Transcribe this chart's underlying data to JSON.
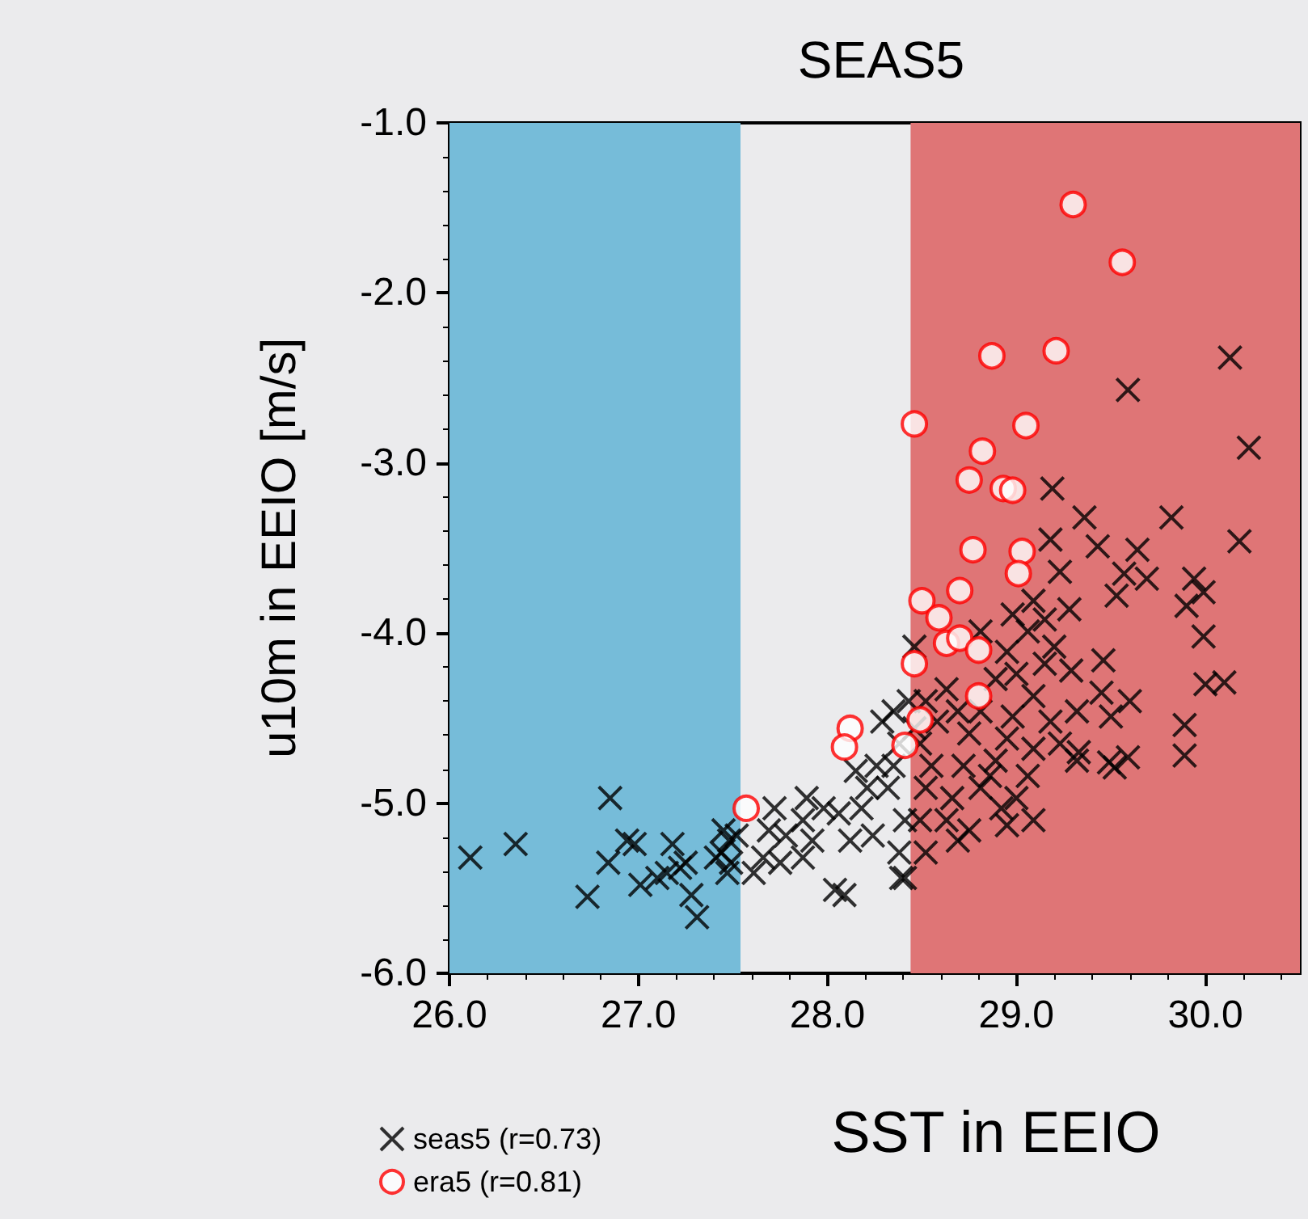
{
  "chart_data": {
    "type": "scatter",
    "title": "SEAS5",
    "xlabel": "SST in EEIO",
    "ylabel": "u10m in EEIO [m/s]",
    "xlim": [
      26,
      30.5
    ],
    "ylim": [
      -6,
      -1
    ],
    "xticks": [
      {
        "value": 26,
        "label": "26.0"
      },
      {
        "value": 27,
        "label": "27.0"
      },
      {
        "value": 28,
        "label": "28.0"
      },
      {
        "value": 29,
        "label": "29.0"
      },
      {
        "value": 30,
        "label": "30.0"
      }
    ],
    "yticks": [
      {
        "value": -6,
        "label": "-6.0"
      },
      {
        "value": -5,
        "label": "-5.0"
      },
      {
        "value": -4,
        "label": "-4.0"
      },
      {
        "value": -3,
        "label": "-3.0"
      },
      {
        "value": -2,
        "label": "-2.0"
      },
      {
        "value": -1,
        "label": "-1.0"
      }
    ],
    "grid": false,
    "legend": "bottom left",
    "bands": [
      {
        "axis": "x",
        "from": 26,
        "to": 27.54,
        "color": "#76bcd9"
      },
      {
        "axis": "x",
        "from": 28.44,
        "to": 30.5,
        "color": "#df7576"
      }
    ],
    "series": [
      {
        "name": "seas5 (r=0.73)",
        "color": "#000000",
        "marker": "cross",
        "x": [
          26.11,
          26.35,
          26.85,
          26.73,
          26.84,
          26.94,
          26.98,
          27.01,
          27.1,
          27.18,
          27.22,
          27.15,
          27.28,
          27.31,
          27.25,
          27.41,
          27.45,
          27.48,
          27.49,
          27.47,
          27.44,
          27.52,
          27.61,
          27.69,
          27.66,
          27.78,
          27.75,
          27.87,
          27.89,
          27.87,
          27.98,
          28.06,
          28.04,
          28.09,
          28.12,
          28.18,
          28.21,
          28.26,
          28.29,
          28.35,
          28.38,
          28.32,
          28.41,
          28.41,
          28.24,
          28.38,
          27.92,
          27.72,
          28.15,
          28.35,
          28.43,
          28.46,
          29.19,
          29.36,
          29.82,
          30.18,
          29.18,
          29.43,
          29.64,
          29.57,
          29.69,
          29.94,
          29.99,
          29.9,
          29.53,
          29.23,
          29.09,
          29.28,
          29.15,
          29.99,
          28.81,
          29.2,
          28.95,
          29.46,
          29.29,
          29.0,
          30.0,
          30.1,
          29.45,
          29.6,
          29.5,
          29.89,
          29.89,
          29.09,
          28.89,
          28.63,
          28.52,
          28.58,
          28.81,
          28.98,
          29.18,
          29.23,
          29.33,
          29.32,
          29.49,
          29.59,
          29.52,
          29.09,
          28.95,
          28.75,
          28.49,
          28.55,
          28.72,
          28.89,
          29.06,
          29.0,
          29.09,
          28.92,
          28.81,
          28.66,
          28.52,
          28.49,
          28.63,
          28.75,
          28.95,
          28.52,
          28.69,
          28.39,
          28.86,
          28.69,
          29.06,
          29.32,
          29.15,
          28.98,
          28.46,
          30.13,
          29.59,
          30.23
        ],
        "values": [
          -5.32,
          -5.24,
          -4.97,
          -5.55,
          -5.35,
          -5.22,
          -5.24,
          -5.48,
          -5.44,
          -5.24,
          -5.38,
          -5.41,
          -5.54,
          -5.67,
          -5.35,
          -5.32,
          -5.16,
          -5.22,
          -5.35,
          -5.41,
          -5.29,
          -5.19,
          -5.41,
          -5.16,
          -5.32,
          -5.19,
          -5.35,
          -5.1,
          -4.97,
          -5.32,
          -5.03,
          -5.06,
          -5.51,
          -5.54,
          -5.22,
          -5.03,
          -4.91,
          -4.78,
          -4.52,
          -4.46,
          -4.65,
          -4.91,
          -5.1,
          -5.44,
          -5.19,
          -5.29,
          -5.22,
          -5.03,
          -4.81,
          -4.78,
          -4.4,
          -4.08,
          -3.15,
          -3.32,
          -3.32,
          -3.46,
          -3.45,
          -3.49,
          -3.51,
          -3.65,
          -3.68,
          -3.68,
          -3.76,
          -3.84,
          -3.78,
          -3.64,
          -3.81,
          -3.86,
          -3.92,
          -4.02,
          -3.99,
          -4.08,
          -4.11,
          -4.16,
          -4.22,
          -4.24,
          -4.3,
          -4.29,
          -4.35,
          -4.4,
          -4.49,
          -4.54,
          -4.72,
          -4.37,
          -4.27,
          -4.33,
          -4.4,
          -4.52,
          -4.46,
          -4.49,
          -4.52,
          -4.65,
          -4.7,
          -4.75,
          -4.76,
          -4.73,
          -4.79,
          -4.68,
          -4.62,
          -4.59,
          -4.65,
          -4.78,
          -4.78,
          -4.75,
          -4.84,
          -4.97,
          -5.1,
          -5.03,
          -4.91,
          -4.97,
          -4.91,
          -5.1,
          -5.1,
          -5.16,
          -5.13,
          -5.29,
          -5.22,
          -5.44,
          -4.84,
          -4.46,
          -3.99,
          -4.46,
          -4.18,
          -3.89,
          -4.56,
          -2.38,
          -2.57,
          -2.91
        ]
      },
      {
        "name": "era5 (r=0.81)",
        "color": "#ff0000",
        "marker": "circle",
        "x": [
          29.3,
          29.56,
          28.87,
          29.21,
          28.46,
          29.05,
          28.82,
          28.75,
          28.93,
          28.98,
          28.77,
          29.03,
          29.01,
          28.7,
          28.5,
          28.59,
          28.63,
          28.7,
          28.8,
          28.46,
          28.8,
          28.49,
          28.41,
          28.12,
          28.09,
          27.57
        ],
        "values": [
          -1.48,
          -1.82,
          -2.37,
          -2.34,
          -2.77,
          -2.78,
          -2.93,
          -3.1,
          -3.15,
          -3.16,
          -3.51,
          -3.52,
          -3.65,
          -3.75,
          -3.81,
          -3.91,
          -4.06,
          -4.03,
          -4.1,
          -4.18,
          -4.37,
          -4.51,
          -4.66,
          -4.56,
          -4.67,
          -5.03
        ]
      }
    ]
  }
}
